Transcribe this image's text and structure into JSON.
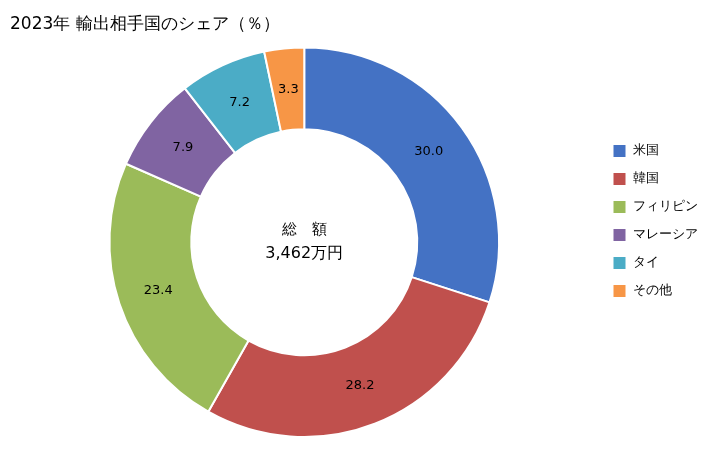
{
  "chart_data": {
    "type": "donut",
    "title": "2023年 輸出相手国のシェア（％）",
    "categories": [
      "米国",
      "韓国",
      "フィリピン",
      "マレーシア",
      "タイ",
      "その他"
    ],
    "values": [
      30.0,
      28.2,
      23.4,
      7.9,
      7.2,
      3.3
    ],
    "value_labels": [
      "30.0",
      "28.2",
      "23.4",
      "7.9",
      "7.2",
      "3.3"
    ],
    "colors": [
      "#4472C4",
      "#C0504D",
      "#9BBB59",
      "#8064A2",
      "#4BACC6",
      "#F79646"
    ],
    "data_labels": true,
    "legend": "right",
    "annotations": [
      "総　額",
      "3,462万円"
    ]
  }
}
